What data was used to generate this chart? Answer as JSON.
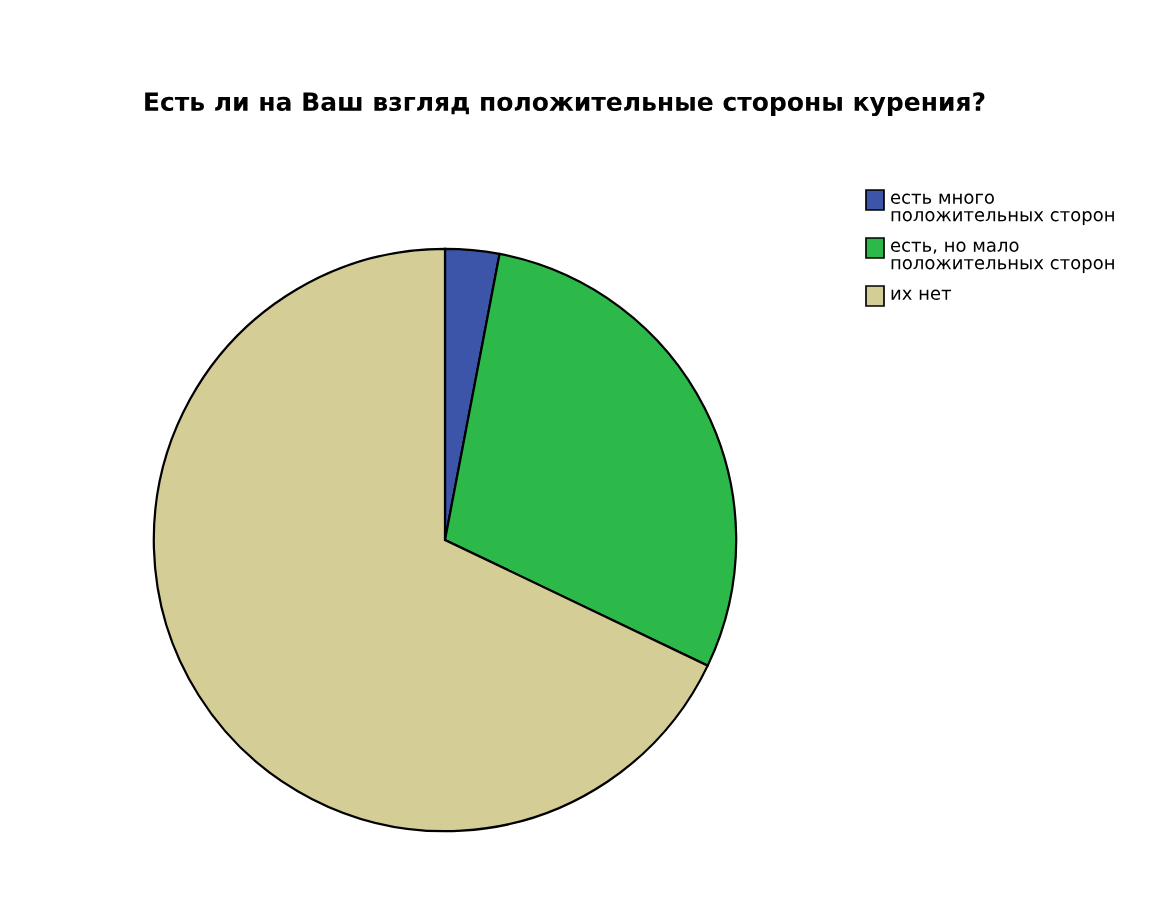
{
  "chart_data": {
    "type": "pie",
    "title": "Есть ли на Ваш взгляд положительные стороны курения?",
    "categories": [
      "есть много положительных сторон",
      "есть, но мало положительных сторон",
      "их нет"
    ],
    "values": [
      3.0,
      29.1,
      67.9
    ],
    "colors": [
      "#3c55a8",
      "#2db84a",
      "#d4cd96"
    ],
    "legend": "top right"
  }
}
